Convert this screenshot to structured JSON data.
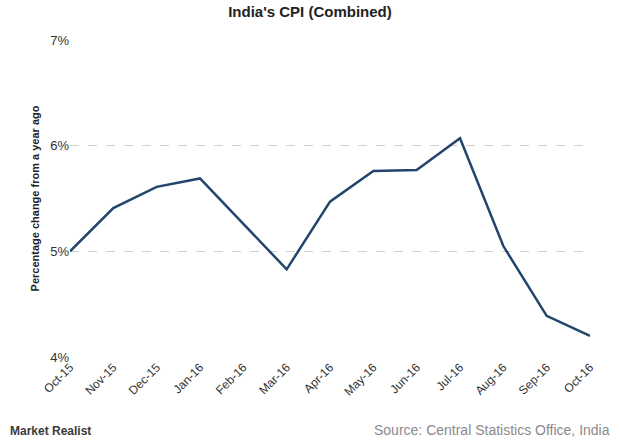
{
  "chart_data": {
    "type": "line",
    "title": "India's CPI (Combined)",
    "y_label": "Percentage change from a year ago",
    "categories": [
      "Oct-15",
      "Nov-15",
      "Dec-15",
      "Jan-16",
      "Feb-16",
      "Mar-16",
      "Apr-16",
      "May-16",
      "Jun-16",
      "Jul-16",
      "Aug-16",
      "Sep-16",
      "Oct-16"
    ],
    "values": [
      5.0,
      5.41,
      5.61,
      5.69,
      5.26,
      4.83,
      5.47,
      5.76,
      5.77,
      6.07,
      5.05,
      4.39,
      4.2
    ],
    "color": "#24456b",
    "line_style": "solid",
    "ylim": [
      4,
      7
    ],
    "yticks": [
      {
        "value": 4,
        "label": "4%"
      },
      {
        "value": 5,
        "label": "5%"
      },
      {
        "value": 6,
        "label": "6%"
      },
      {
        "value": 7,
        "label": "7%"
      }
    ],
    "grid": true,
    "annotations": [
      "Market Realist",
      "Source: Central Statistics Office, India"
    ]
  }
}
